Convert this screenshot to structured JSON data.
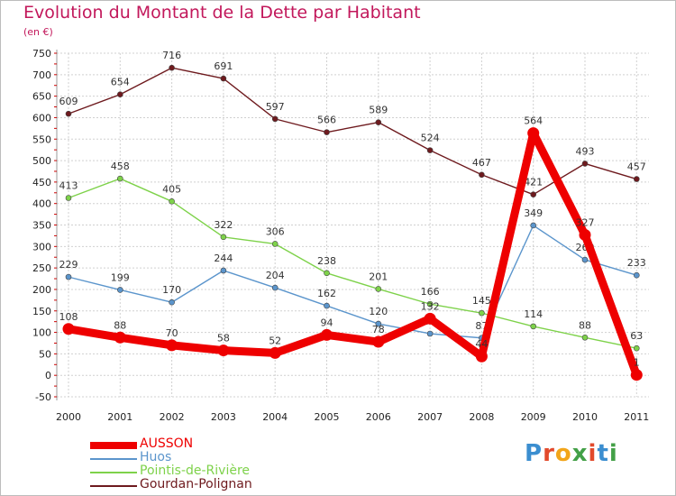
{
  "title": "Evolution du Montant de la Dette par Habitant",
  "subtitle": "(en €)",
  "logo": "Proxiti",
  "colors": {
    "title": "#c2185b",
    "grid": "#d0d0d0"
  },
  "chart_data": {
    "type": "line",
    "title": "Evolution du Montant de la Dette par Habitant",
    "ylabel": "(en €)",
    "xlabel": "",
    "ylim": [
      -50,
      750
    ],
    "yticks": [
      -50,
      0,
      50,
      100,
      150,
      200,
      250,
      300,
      350,
      400,
      450,
      500,
      550,
      600,
      650,
      700,
      750
    ],
    "x": [
      "2000",
      "2001",
      "2002",
      "2003",
      "2004",
      "2005",
      "2006",
      "2007",
      "2008",
      "2009",
      "2010",
      "2011"
    ],
    "grid": true,
    "legend_position": "bottom-left",
    "series": [
      {
        "name": "Gourdan-Polignan",
        "color": "#6e1a1e",
        "values": [
          609,
          654,
          716,
          691,
          597,
          566,
          589,
          524,
          467,
          421,
          493,
          457
        ]
      },
      {
        "name": "Pointis-de-Rivière",
        "color": "#7ed24a",
        "values": [
          413,
          458,
          405,
          322,
          306,
          238,
          201,
          166,
          145,
          114,
          88,
          63
        ]
      },
      {
        "name": "Huos",
        "color": "#5b95cc",
        "values": [
          229,
          199,
          170,
          244,
          204,
          162,
          120,
          97,
          87,
          349,
          269,
          233
        ]
      },
      {
        "name": "AUSSON",
        "color": "#ee0000",
        "values": [
          108,
          88,
          70,
          58,
          52,
          94,
          78,
          132,
          44,
          564,
          327,
          1
        ]
      }
    ],
    "labels": [
      {
        "series": "Gourdan-Polignan",
        "texts": [
          "609",
          "654",
          "716",
          "691",
          "597",
          "566",
          "589",
          "524",
          "467",
          "421",
          "493",
          "457"
        ]
      },
      {
        "series": "Pointis-de-Rivière",
        "texts": [
          "413",
          "458",
          "405",
          "322",
          "306",
          "238",
          "201",
          "166",
          "145",
          "114",
          "88",
          "63"
        ]
      },
      {
        "series": "Huos",
        "texts": [
          "229",
          "199",
          "170",
          "244",
          "204",
          "162",
          "120",
          "97",
          "87",
          "349",
          "269",
          "233"
        ]
      },
      {
        "series": "AUSSON",
        "texts": [
          "108",
          "88",
          "70",
          "58",
          "52",
          "94",
          "78",
          "132",
          "44",
          "564",
          "327",
          "1"
        ]
      }
    ]
  },
  "legend": [
    {
      "name": "AUSSON",
      "color": "#ee0000"
    },
    {
      "name": "Huos",
      "color": "#5b95cc"
    },
    {
      "name": "Pointis-de-Rivière",
      "color": "#7ed24a"
    },
    {
      "name": "Gourdan-Polignan",
      "color": "#6e1a1e"
    }
  ]
}
